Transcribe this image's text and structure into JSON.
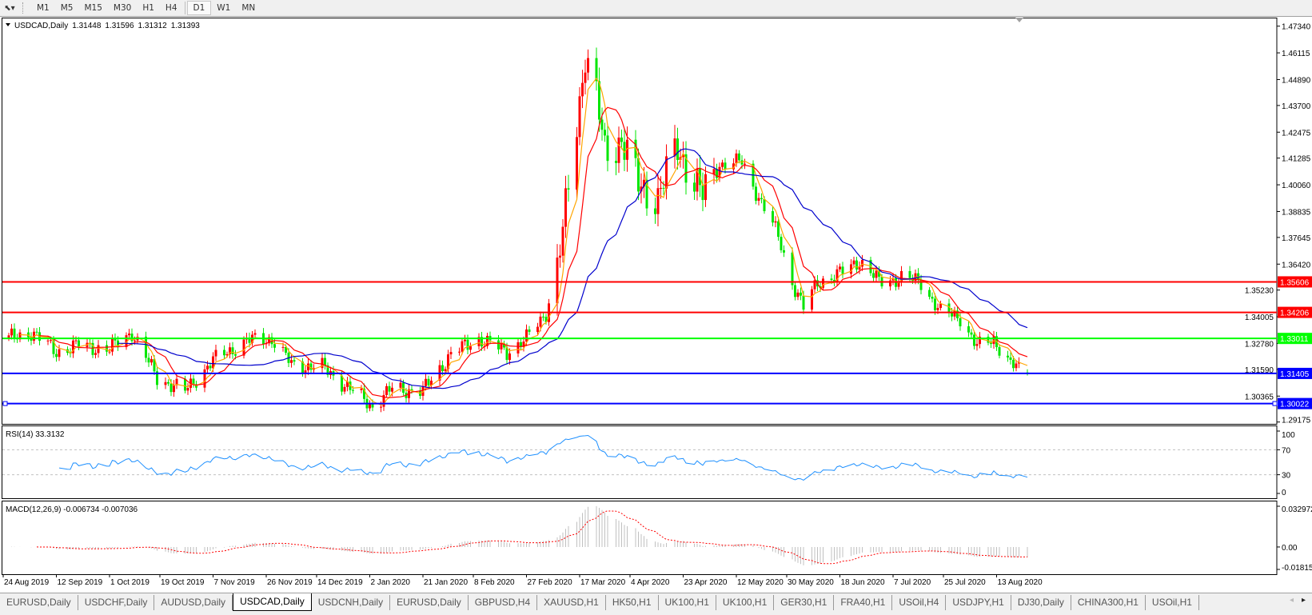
{
  "toolbar": {
    "drawing_dropdown_icon": "cursor-arrow-dropdown-icon",
    "timeframes": [
      "M1",
      "M5",
      "M15",
      "M30",
      "H1",
      "H4",
      "D1",
      "W1",
      "MN"
    ],
    "active_timeframe": "D1"
  },
  "chart_header": {
    "symbol": "USDCAD,Daily",
    "open": "1.31448",
    "high": "1.31596",
    "low": "1.31312",
    "close": "1.31393"
  },
  "chart_data": {
    "type": "candlestick",
    "price_axis_ticks": [
      "1.47340",
      "1.46115",
      "1.44890",
      "1.43700",
      "1.42475",
      "1.41285",
      "1.40060",
      "1.38835",
      "1.37645",
      "1.36420",
      "1.35230",
      "1.34005",
      "1.32780",
      "1.31590",
      "1.30365",
      "1.29175"
    ],
    "ylim": [
      1.29175,
      1.4734
    ],
    "date_ticks": [
      "24 Aug 2019",
      "12 Sep 2019",
      "1 Oct 2019",
      "19 Oct 2019",
      "7 Nov 2019",
      "26 Nov 2019",
      "14 Dec 2019",
      "2 Jan 2020",
      "21 Jan 2020",
      "8 Feb 2020",
      "27 Feb 2020",
      "17 Mar 2020",
      "4 Apr 2020",
      "23 Apr 2020",
      "12 May 2020",
      "30 May 2020",
      "18 Jun 2020",
      "7 Jul 2020",
      "25 Jul 2020",
      "13 Aug 2020"
    ],
    "up_color": "#ff0000",
    "down_color": "#00e600",
    "approx_close_path": [
      [
        "2019-08-26",
        1.33
      ],
      [
        "2019-09-03",
        1.333
      ],
      [
        "2019-09-12",
        1.324
      ],
      [
        "2019-09-20",
        1.327
      ],
      [
        "2019-10-01",
        1.325
      ],
      [
        "2019-10-09",
        1.333
      ],
      [
        "2019-10-18",
        1.312
      ],
      [
        "2019-10-28",
        1.306
      ],
      [
        "2019-11-07",
        1.32
      ],
      [
        "2019-11-19",
        1.329
      ],
      [
        "2019-11-28",
        1.33
      ],
      [
        "2019-12-05",
        1.318
      ],
      [
        "2019-12-16",
        1.317
      ],
      [
        "2019-12-27",
        1.306
      ],
      [
        "2020-01-03",
        1.299
      ],
      [
        "2020-01-10",
        1.307
      ],
      [
        "2020-01-21",
        1.306
      ],
      [
        "2020-01-31",
        1.323
      ],
      [
        "2020-02-10",
        1.33
      ],
      [
        "2020-02-20",
        1.324
      ],
      [
        "2020-02-27",
        1.33
      ],
      [
        "2020-03-05",
        1.342
      ],
      [
        "2020-03-09",
        1.362
      ],
      [
        "2020-03-12",
        1.388
      ],
      [
        "2020-03-18",
        1.45
      ],
      [
        "2020-03-19",
        1.462
      ],
      [
        "2020-03-23",
        1.44
      ],
      [
        "2020-03-26",
        1.415
      ],
      [
        "2020-04-01",
        1.422
      ],
      [
        "2020-04-07",
        1.4
      ],
      [
        "2020-04-14",
        1.395
      ],
      [
        "2020-04-21",
        1.418
      ],
      [
        "2020-04-30",
        1.395
      ],
      [
        "2020-05-06",
        1.41
      ],
      [
        "2020-05-14",
        1.411
      ],
      [
        "2020-05-20",
        1.395
      ],
      [
        "2020-05-27",
        1.377
      ],
      [
        "2020-06-01",
        1.356
      ],
      [
        "2020-06-05",
        1.344
      ],
      [
        "2020-06-10",
        1.356
      ],
      [
        "2020-06-17",
        1.359
      ],
      [
        "2020-06-25",
        1.366
      ],
      [
        "2020-07-02",
        1.356
      ],
      [
        "2020-07-10",
        1.358
      ],
      [
        "2020-07-17",
        1.356
      ],
      [
        "2020-07-24",
        1.342
      ],
      [
        "2020-07-31",
        1.34
      ],
      [
        "2020-08-06",
        1.326
      ],
      [
        "2020-08-12",
        1.33
      ],
      [
        "2020-08-18",
        1.318
      ],
      [
        "2020-08-24",
        1.31393
      ]
    ],
    "moving_averages": [
      {
        "color": "#ffa500"
      },
      {
        "color": "#ff0000"
      },
      {
        "color": "#0000cd"
      }
    ],
    "horizontal_lines": [
      {
        "price": "1.35606",
        "color": "#ff0000"
      },
      {
        "price": "1.34206",
        "color": "#ff0000"
      },
      {
        "price": "1.33011",
        "color": "#00ff00"
      },
      {
        "price": "1.31405",
        "color": "#0000ff"
      },
      {
        "price": "1.30022",
        "color": "#0000ff"
      }
    ]
  },
  "rsi": {
    "label": "RSI(14) 33.3132",
    "ticks": [
      "100",
      "70",
      "30",
      "0"
    ],
    "levels": [
      70,
      30
    ],
    "color": "#1e90ff"
  },
  "macd": {
    "label": "MACD(12,26,9) -0.006734 -0.007036",
    "ticks": [
      "0.032972",
      "0.00",
      "-0.018154"
    ],
    "histogram_color": "#c0c0c0",
    "signal_color": "#ff0000"
  },
  "tabs": {
    "items": [
      "EURUSD,Daily",
      "USDCHF,Daily",
      "AUDUSD,Daily",
      "USDCAD,Daily",
      "USDCNH,Daily",
      "EURUSD,Daily",
      "GBPUSD,H4",
      "XAUUSD,H1",
      "HK50,H1",
      "UK100,H1",
      "UK100,H1",
      "GER30,H1",
      "FRA40,H1",
      "USOil,H4",
      "USDJPY,H1",
      "DJ30,Daily",
      "CHINA300,H1",
      "USOil,H1"
    ],
    "active_index": 3
  }
}
